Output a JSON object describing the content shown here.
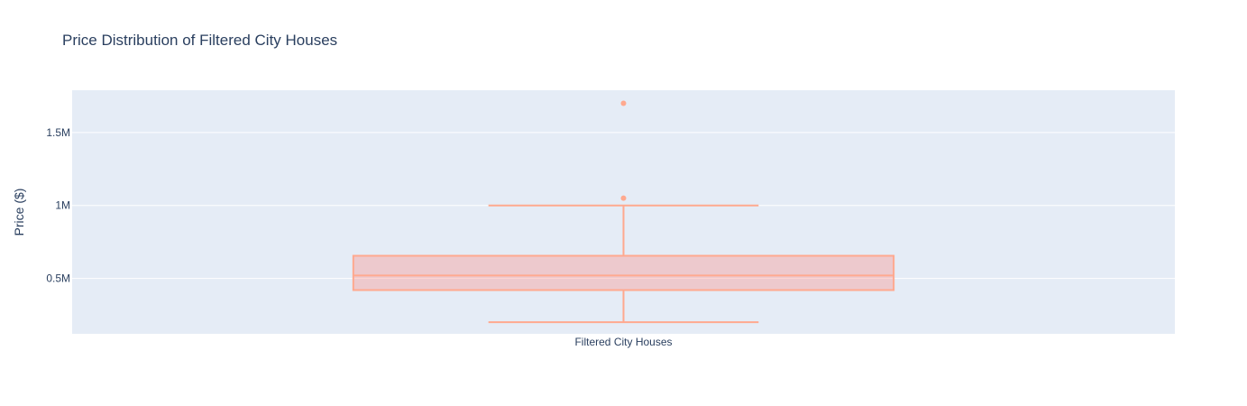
{
  "chart_data": {
    "type": "box",
    "title": "Price Distribution of Filtered City Houses",
    "xlabel": "",
    "ylabel": "Price ($)",
    "categories": [
      "Filtered City Houses"
    ],
    "ylim": [
      120000,
      1790000
    ],
    "yticks": [
      {
        "value": 500000,
        "label": "0.5M"
      },
      {
        "value": 1000000,
        "label": "1M"
      },
      {
        "value": 1500000,
        "label": "1.5M"
      }
    ],
    "grid": true,
    "legend": "none",
    "series": [
      {
        "category": "Filtered City Houses",
        "min": 200000,
        "q1": 420000,
        "median": 520000,
        "q3": 655000,
        "max": 1000000,
        "outliers": [
          1050000,
          1700000
        ]
      }
    ],
    "colors": {
      "box_line": "#ffa98f",
      "box_fill": "rgba(255,120,110,0.3)",
      "plot_bg": "#e5ecf6",
      "grid": "#ffffff",
      "text": "#2a3f5f"
    }
  }
}
